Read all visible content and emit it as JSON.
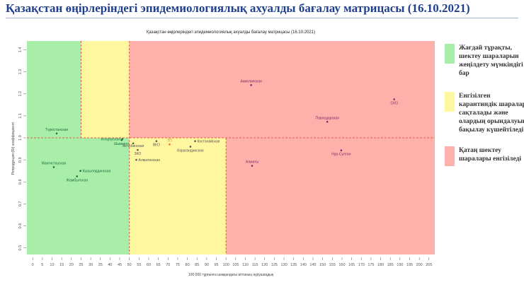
{
  "slide_title": "Қазақстан өңірлеріндегі эпидемиологиялық ахуалды бағалау матрицасы  (16.10.2021)",
  "legend": [
    {
      "color": "#a8eea8",
      "text": "Жағдай тұрақты, шектеу шараларын жеңілдету мүмкіндігі бар"
    },
    {
      "color": "#fff6a0",
      "text": "Енгізілген карантиндік шаралар сақталады және олардың орындалуын бақылау күшейтіледі"
    },
    {
      "color": "#ffb0aa",
      "text": "Қатаң шектеу шаралары енгізіледі"
    }
  ],
  "chart_data": {
    "type": "scatter",
    "title": "Қазақстан өңірлеріндегі эпидемиологиялық ахуалды бағалау матрицасы  (16.10.2021)",
    "xlabel": "100 000 тұрғынға шаққандағы аптаның аурушаңдық",
    "ylabel": "Репродукция (Rt) коэффициенті",
    "xlim": [
      -3,
      208
    ],
    "ylim": [
      0.47,
      1.44
    ],
    "xticks": [
      0,
      5,
      10,
      15,
      20,
      25,
      30,
      35,
      40,
      45,
      50,
      55,
      60,
      65,
      70,
      75,
      80,
      85,
      90,
      95,
      100,
      105,
      110,
      115,
      120,
      125,
      130,
      135,
      140,
      145,
      150,
      155,
      160,
      165,
      170,
      175,
      180,
      185,
      190,
      195,
      200,
      205
    ],
    "yticks": [
      0.5,
      0.6,
      0.7,
      0.8,
      0.9,
      1.0,
      1.1,
      1.2,
      1.3,
      1.4
    ],
    "grid": false,
    "thresholds": {
      "x": [
        25,
        50,
        100
      ],
      "y": 1.0
    },
    "zone_colors": {
      "green": "#a8eea8",
      "yellow": "#fff6a0",
      "red": "#ffb0aa",
      "dash": "#e0604a"
    },
    "points": [
      {
        "label": "Түркістанская",
        "x": 12.4,
        "y": 1.02,
        "color": "#1f6f3f"
      },
      {
        "label": "Атырауская",
        "x": 46.4,
        "y": 0.995,
        "color": "#1f6f3f"
      },
      {
        "label": "Шымкент",
        "x": 46,
        "y": 0.99,
        "color": "#1f6f3f"
      },
      {
        "label": "Актюбинская",
        "x": 52,
        "y": 0.975,
        "color": "#555555"
      },
      {
        "label": "ЗКО",
        "x": 54.3,
        "y": 0.945,
        "color": "#555555"
      },
      {
        "label": "Алматинская",
        "x": 53.6,
        "y": 0.9,
        "color": "#555555"
      },
      {
        "label": "ВКО",
        "x": 64,
        "y": 0.985,
        "color": "#555555"
      },
      {
        "label": "ТП",
        "x": 70.8,
        "y": 0.97,
        "color": "#f07020"
      },
      {
        "label": "Костанайская",
        "x": 84,
        "y": 0.985,
        "color": "#555555"
      },
      {
        "label": "Карагандинская",
        "x": 81.6,
        "y": 0.96,
        "color": "#555555"
      },
      {
        "label": "Мангистауская",
        "x": 10.9,
        "y": 0.867,
        "color": "#1f6f3f"
      },
      {
        "label": "Кызылординская",
        "x": 24.7,
        "y": 0.85,
        "color": "#1f6f3f"
      },
      {
        "label": "Жамбылская",
        "x": 22.9,
        "y": 0.825,
        "color": "#1f6f3f"
      },
      {
        "label": "Акмолинская",
        "x": 113,
        "y": 1.24,
        "color": "#7a2a6a"
      },
      {
        "label": "Павлодарская",
        "x": 152.4,
        "y": 1.073,
        "color": "#7a2a6a"
      },
      {
        "label": "СКО",
        "x": 187,
        "y": 1.175,
        "color": "#7a2a6a"
      },
      {
        "label": "Нур-Султан",
        "x": 159.6,
        "y": 0.943,
        "color": "#7a2a6a"
      },
      {
        "label": "Алматы",
        "x": 113.5,
        "y": 0.873,
        "color": "#7a2a6a"
      }
    ]
  }
}
